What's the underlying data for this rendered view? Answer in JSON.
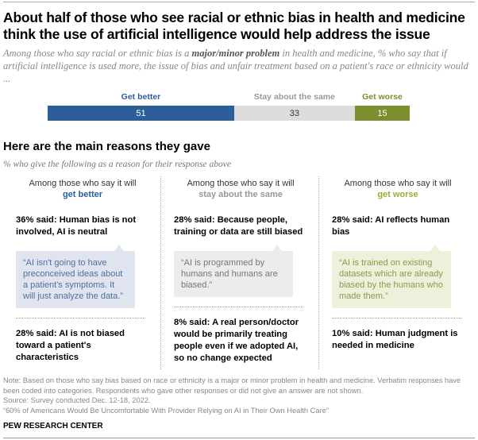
{
  "title": "About half of those who see racial or ethnic bias in health and medicine think the use of artificial intelligence would help address the issue",
  "subtitle": {
    "pre": "Among those who say racial or ethnic bias is a ",
    "bold": "major/minor problem",
    "post": " in health and medicine, % who say that if artificial intelligence is used more, the issue of bias and unfair treatment based on a patient's race or ethnicity would ..."
  },
  "chart_data": {
    "type": "bar",
    "stacked": true,
    "orientation": "horizontal",
    "categories": [
      "Get better",
      "Stay about the same",
      "Get worse"
    ],
    "values": [
      51,
      33,
      15
    ],
    "colors": [
      "#2c5f9a",
      "#dcdcdc",
      "#7b8f2f"
    ],
    "label_colors": [
      "#2c5f9a",
      "#999999",
      "#7b8f2f"
    ],
    "value_text_colors": [
      "#ffffff",
      "#333333",
      "#ffffff"
    ]
  },
  "section_title": "Here are the main reasons they gave",
  "section_subtitle": "% who give the following as a reason for their response above",
  "columns": [
    {
      "intro": "Among those who say it will",
      "group": "get better",
      "color": "#2c5f9a",
      "bubble_bg": "#dfe4ef",
      "bubble_text": "#4f6fa0",
      "reason1": "36% said: Human bias is not involved, AI is neutral",
      "quote": "“AI isn't going to have preconceived ideas about a patient's symptoms. It will just analyze the data.”",
      "reason2": "28% said: AI is not biased toward a patient's characteristics"
    },
    {
      "intro": "Among those who say it will",
      "group": "stay about the same",
      "color": "#999999",
      "bubble_bg": "#ececec",
      "bubble_text": "#777777",
      "reason1": "28% said: Because people, training or data are still biased",
      "quote": "“AI is programmed by humans and humans are biased.”",
      "reason2": "8% said: A real person/doctor would be primarily treating people even if we adopted AI, so no change expected"
    },
    {
      "intro": "Among those who say it will",
      "group": "get worse",
      "color": "#9aad3c",
      "bubble_bg": "#eef0dc",
      "bubble_text": "#8a9a4a",
      "reason1": "28% said: AI reflects human bias",
      "quote": "“AI is trained on existing datasets which are already biased by the humans who made them.”",
      "reason2": "10% said: Human judgment is needed in medicine"
    }
  ],
  "note": "Note: Based on those who say bias based on race or ethnicity is a major or minor problem in health and medicine. Verbatim responses have been coded into categories. Respondents who gave other responses or did not give an answer are not shown.",
  "source": "Source: Survey conducted Dec. 12-18, 2022.",
  "report": "“60% of Americans Would Be Uncomfortable With Provider Relying on AI in Their Own Health Care”",
  "brand": "PEW RESEARCH CENTER"
}
